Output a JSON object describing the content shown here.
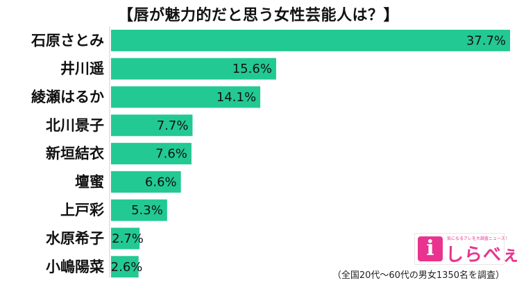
{
  "chart_data": {
    "type": "bar",
    "orientation": "horizontal",
    "title": "【唇が魅力的だと思う女性芸能人は？】",
    "categories": [
      "石原さとみ",
      "井川遥",
      "綾瀬はるか",
      "北川景子",
      "新垣結衣",
      "壇蜜",
      "上戸彩",
      "水原希子",
      "小嶋陽菜"
    ],
    "values": [
      37.7,
      15.6,
      14.1,
      7.7,
      7.6,
      6.6,
      5.3,
      2.7,
      2.6
    ],
    "value_labels": [
      "37.7%",
      "15.6%",
      "14.1%",
      "7.7%",
      "7.6%",
      "6.6%",
      "5.3%",
      "2.7%",
      "2.6%"
    ],
    "xlim": [
      0,
      37.7
    ],
    "bar_color": "#22c993",
    "grid": false,
    "legend": false
  },
  "logo": {
    "mark": "i",
    "text": "しらべぇ",
    "tagline": "気になるアレを大調査ニュース！",
    "color": "#e8348e"
  },
  "footnote": "（全国20代～60代の男女1350名を調査）"
}
